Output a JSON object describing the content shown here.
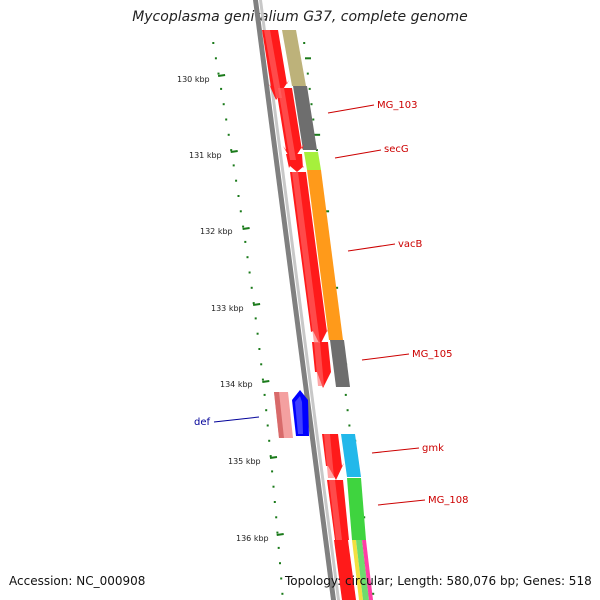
{
  "header": {
    "title": "Mycoplasma genitalium G37, complete genome"
  },
  "footer": {
    "accession": "Accession: NC_000908",
    "topology": "Topology: circular; Length: 580,076 bp; Genes: 518"
  },
  "ruler": {
    "ticks": [
      "130 kbp",
      "131 kbp",
      "132 kbp",
      "133 kbp",
      "134 kbp",
      "135 kbp",
      "136 kbp"
    ]
  },
  "labels": {
    "mg103": "MG_103",
    "secg": "secG",
    "vacb": "vacB",
    "mg105": "MG_105",
    "def": "def",
    "gmk": "gmk",
    "mg108": "MG_108"
  },
  "colors": {
    "cds_forward": "#ff0000",
    "cds_reverse": "#0000ff",
    "label_forward": "#cc0000",
    "label_reverse": "#000099",
    "tick": "#1a7a1a",
    "backbone": "#808080"
  }
}
